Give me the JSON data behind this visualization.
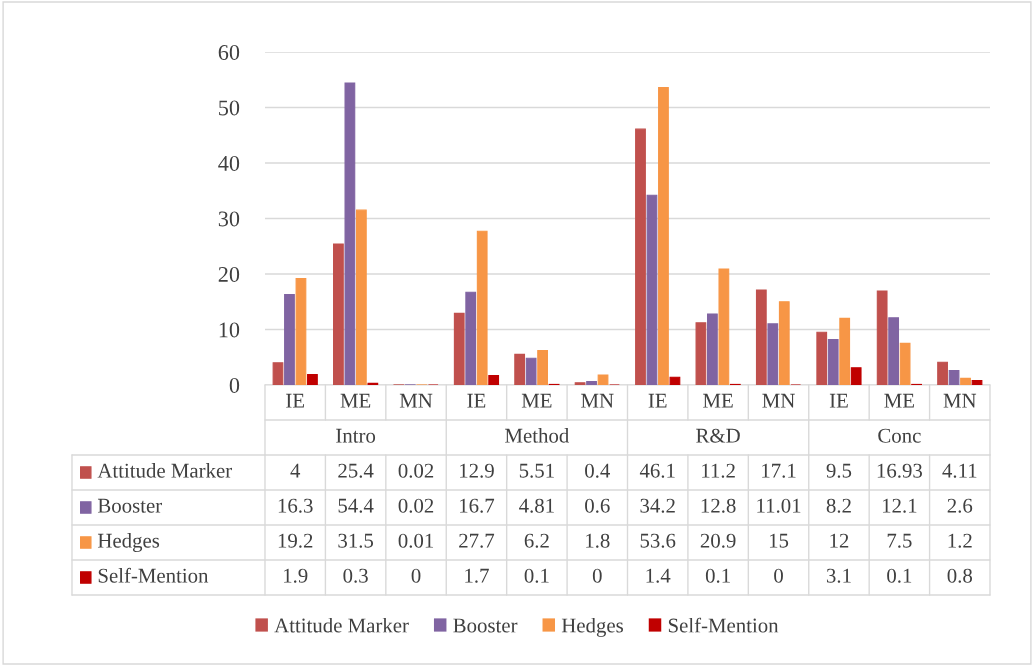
{
  "chart_data": {
    "type": "bar",
    "categories": [
      "IE",
      "ME",
      "MN",
      "IE",
      "ME",
      "MN",
      "IE",
      "ME",
      "MN",
      "IE",
      "ME",
      "MN"
    ],
    "annotations": [
      "Intro",
      "Method",
      "R&D",
      "Conc"
    ],
    "series": [
      {
        "name": "Attitude Marker",
        "color": "#c0504d",
        "values": [
          4,
          25.4,
          0.02,
          12.9,
          5.51,
          0.4,
          46.1,
          11.2,
          17.1,
          9.5,
          16.93,
          4.11
        ]
      },
      {
        "name": "Booster",
        "color": "#8064a2",
        "values": [
          16.3,
          54.4,
          0.02,
          16.7,
          4.81,
          0.6,
          34.2,
          12.8,
          11.01,
          8.2,
          12.1,
          2.6
        ]
      },
      {
        "name": "Hedges",
        "color": "#f79646",
        "values": [
          19.2,
          31.5,
          0.01,
          27.7,
          6.2,
          1.8,
          53.6,
          20.9,
          15,
          12,
          7.5,
          1.2
        ]
      },
      {
        "name": "Self-Mention",
        "color": "#c00000",
        "values": [
          1.9,
          0.3,
          0,
          1.7,
          0.1,
          0,
          1.4,
          0.1,
          0,
          3.1,
          0.1,
          0.8
        ]
      }
    ],
    "ylim": [
      0,
      60
    ],
    "yticks": [
      0,
      10,
      20,
      30,
      40,
      50,
      60
    ],
    "grid": "y",
    "legend": "bottom",
    "data_labels": true
  }
}
